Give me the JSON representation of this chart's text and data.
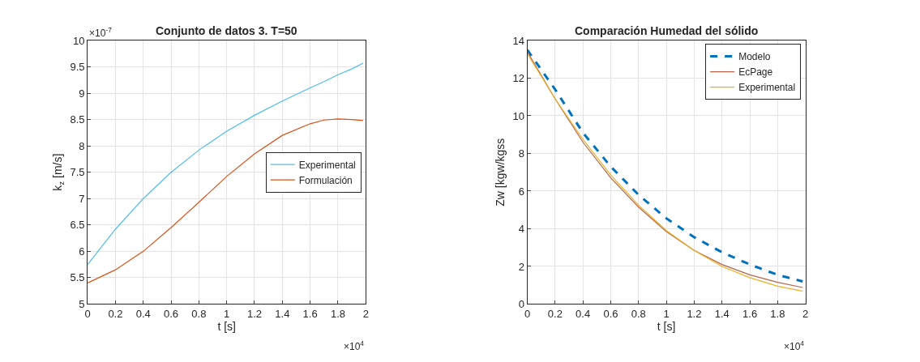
{
  "chart_data": [
    {
      "type": "line",
      "title": "Conjunto de datos 3. T=50",
      "xlabel": "t [s]",
      "ylabel": "k$_{z}$ [m/s]",
      "annotations": [
        "×10$^{-7}$",
        "×10$^{4}$"
      ],
      "x": [
        0,
        0.2,
        0.4,
        0.6,
        0.8,
        1.0,
        1.2,
        1.4,
        1.6,
        1.7,
        1.8,
        1.9,
        1.98
      ],
      "series": [
        {
          "name": "Experimental",
          "color": "#4dbeee",
          "values": [
            5.75,
            6.42,
            7.0,
            7.5,
            7.92,
            8.28,
            8.58,
            8.85,
            9.1,
            9.22,
            9.35,
            9.46,
            9.57
          ]
        },
        {
          "name": "Formulación",
          "color": "#d95319",
          "values": [
            5.4,
            5.65,
            6.0,
            6.45,
            6.93,
            7.42,
            7.85,
            8.2,
            8.42,
            8.49,
            8.51,
            8.5,
            8.48
          ]
        }
      ],
      "xlim": [
        0,
        2
      ],
      "xticks": [
        0,
        0.2,
        0.4,
        0.6,
        0.8,
        1,
        1.2,
        1.4,
        1.6,
        1.8,
        2
      ],
      "ylim": [
        5,
        10
      ],
      "yticks": [
        5,
        5.5,
        6,
        6.5,
        7,
        7.5,
        8,
        8.5,
        9,
        9.5,
        10
      ],
      "grid": true,
      "legend": "right",
      "line_style": "solid",
      "marker": "none"
    },
    {
      "type": "line",
      "title": "Comparación Humedad del sólido",
      "xlabel": "t [s]",
      "ylabel": "Zw [kgw/kgss",
      "annotations": [
        "×10$^{4}$"
      ],
      "x": [
        0,
        0.2,
        0.4,
        0.6,
        0.8,
        1.0,
        1.2,
        1.4,
        1.6,
        1.8,
        1.98
      ],
      "series": [
        {
          "name": "Modelo",
          "color": "#0072bd",
          "line_style": "dashed",
          "values": [
            13.5,
            11.4,
            9.1,
            7.3,
            5.8,
            4.55,
            3.55,
            2.75,
            2.1,
            1.55,
            1.2
          ]
        },
        {
          "name": "EcPage",
          "color": "#b5654a",
          "values": [
            13.4,
            10.9,
            8.6,
            6.7,
            5.15,
            3.85,
            2.85,
            2.1,
            1.55,
            1.15,
            0.88
          ]
        },
        {
          "name": "Experimental",
          "color": "#edb120",
          "values": [
            13.3,
            10.9,
            8.75,
            6.85,
            5.25,
            3.9,
            2.85,
            2.0,
            1.4,
            0.95,
            0.68
          ]
        }
      ],
      "xlim": [
        0,
        2
      ],
      "xticks": [
        0,
        0.2,
        0.4,
        0.6,
        0.8,
        1,
        1.2,
        1.4,
        1.6,
        1.8,
        2
      ],
      "ylim": [
        0,
        14
      ],
      "yticks": [
        0,
        2,
        4,
        6,
        8,
        10,
        12,
        14
      ],
      "grid": true,
      "legend": "top right",
      "line_style": "solid",
      "marker": "none"
    }
  ]
}
